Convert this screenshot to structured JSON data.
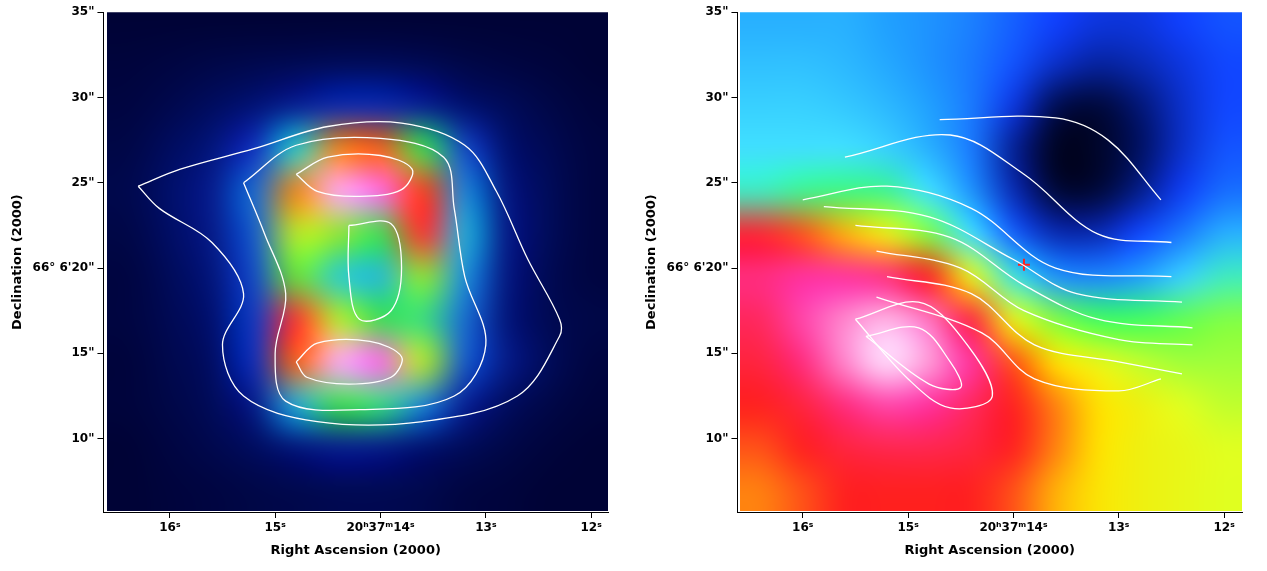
{
  "chart_data": [
    {
      "type": "heatmap",
      "x_label": "Right Ascension (2000)",
      "y_label": "Declination (2000)",
      "xlim": [
        16.63,
        11.84
      ],
      "ylim": [
        5.7,
        35
      ],
      "xticks": [
        {
          "value": 16,
          "label": "16ˢ"
        },
        {
          "value": 15,
          "label": "15ˢ"
        },
        {
          "value": 14,
          "label": "20ʰ37ᵐ14ˢ"
        },
        {
          "value": 13,
          "label": "13ˢ"
        },
        {
          "value": 12,
          "label": "12ˢ"
        }
      ],
      "yticks": [
        {
          "value": 10,
          "label": "10\""
        },
        {
          "value": 15,
          "label": "15\""
        },
        {
          "value": 20,
          "label": "66° 6'20\""
        },
        {
          "value": 25,
          "label": "25\""
        },
        {
          "value": 30,
          "label": "30\""
        },
        {
          "value": 35,
          "label": "35\""
        }
      ],
      "grid": false,
      "heatmap": {
        "x": [
          16.4,
          16.0,
          15.6,
          15.2,
          14.8,
          14.4,
          14.0,
          13.6,
          13.2,
          12.8,
          12.4,
          12.0
        ],
        "y": [
          34.5,
          32,
          29.5,
          27,
          24.5,
          22,
          19.5,
          17,
          14.5,
          12,
          9.5,
          7
        ],
        "cells": [
          [
            0.02,
            0.02,
            0.02,
            0.02,
            0.02,
            0.02,
            0.02,
            0.02,
            0.02,
            0.02,
            0.02,
            0.02
          ],
          [
            0.03,
            0.04,
            0.05,
            0.06,
            0.07,
            0.08,
            0.08,
            0.07,
            0.05,
            0.04,
            0.03,
            0.02
          ],
          [
            0.04,
            0.06,
            0.09,
            0.13,
            0.18,
            0.22,
            0.22,
            0.18,
            0.12,
            0.08,
            0.05,
            0.03
          ],
          [
            0.05,
            0.09,
            0.14,
            0.25,
            0.45,
            0.7,
            0.72,
            0.55,
            0.28,
            0.12,
            0.07,
            0.04
          ],
          [
            0.06,
            0.11,
            0.17,
            0.32,
            0.7,
            0.98,
            0.95,
            0.75,
            0.35,
            0.15,
            0.08,
            0.04
          ],
          [
            0.05,
            0.1,
            0.16,
            0.3,
            0.62,
            0.6,
            0.55,
            0.78,
            0.4,
            0.16,
            0.08,
            0.04
          ],
          [
            0.04,
            0.08,
            0.14,
            0.28,
            0.58,
            0.45,
            0.42,
            0.6,
            0.36,
            0.15,
            0.07,
            0.04
          ],
          [
            0.04,
            0.07,
            0.12,
            0.26,
            0.78,
            0.62,
            0.55,
            0.52,
            0.32,
            0.14,
            0.07,
            0.05
          ],
          [
            0.03,
            0.06,
            0.1,
            0.24,
            0.72,
            0.98,
            0.95,
            0.62,
            0.3,
            0.16,
            0.08,
            0.04
          ],
          [
            0.03,
            0.05,
            0.08,
            0.16,
            0.4,
            0.55,
            0.52,
            0.35,
            0.18,
            0.09,
            0.05,
            0.03
          ],
          [
            0.02,
            0.04,
            0.06,
            0.09,
            0.14,
            0.17,
            0.16,
            0.12,
            0.08,
            0.05,
            0.03,
            0.02
          ],
          [
            0.02,
            0.03,
            0.04,
            0.05,
            0.06,
            0.07,
            0.07,
            0.06,
            0.04,
            0.03,
            0.02,
            0.02
          ]
        ]
      },
      "series": [
        {
          "type": "line",
          "color": "#ffffff",
          "x": [
            16.3,
            15.9,
            15.2,
            14.5,
            13.8,
            13.2,
            12.9,
            12.6,
            12.3,
            12.3,
            12.7,
            13.6,
            14.6,
            15.3,
            15.5,
            15.3,
            15.6,
            16.1,
            16.3
          ],
          "y": [
            24.8,
            25.8,
            27.0,
            28.3,
            28.5,
            27.2,
            24.5,
            20.5,
            17.0,
            16.0,
            12.5,
            11.0,
            11.0,
            12.5,
            15.5,
            18.5,
            21.5,
            23.5,
            24.8
          ]
        },
        {
          "type": "line",
          "color": "#ffffff",
          "x": [
            15.3,
            14.8,
            14.0,
            13.4,
            13.3,
            13.2,
            13.0,
            13.3,
            14.2,
            14.9,
            15.0,
            14.9,
            15.1,
            15.3
          ],
          "y": [
            25.0,
            27.2,
            27.6,
            26.5,
            23.5,
            19.5,
            15.5,
            12.5,
            11.7,
            12.2,
            15.0,
            18.5,
            22.0,
            25.0
          ]
        },
        {
          "type": "line",
          "color": "#ffffff",
          "x": [
            14.8,
            14.5,
            14.0,
            13.7,
            13.8,
            14.2,
            14.6,
            14.8
          ],
          "y": [
            25.5,
            26.5,
            26.6,
            25.8,
            24.6,
            24.2,
            24.5,
            25.5
          ]
        },
        {
          "type": "line",
          "color": "#ffffff",
          "x": [
            14.8,
            14.6,
            14.1,
            13.8,
            13.9,
            14.3,
            14.7,
            14.8
          ],
          "y": [
            14.5,
            15.6,
            15.7,
            14.8,
            13.6,
            13.2,
            13.6,
            14.5
          ]
        },
        {
          "type": "line",
          "color": "#ffffff",
          "x": [
            14.3,
            13.9,
            13.8,
            13.9,
            14.2,
            14.3,
            14.3
          ],
          "y": [
            22.5,
            22.6,
            20.0,
            17.5,
            17.0,
            19.5,
            22.5
          ]
        }
      ]
    },
    {
      "type": "heatmap",
      "x_label": "Right Ascension (2000)",
      "y_label": "Declination (2000)",
      "xlim": [
        16.62,
        11.83
      ],
      "ylim": [
        5.7,
        35
      ],
      "xticks": [
        {
          "value": 16,
          "label": "16ˢ"
        },
        {
          "value": 15,
          "label": "15ˢ"
        },
        {
          "value": 14,
          "label": "20ʰ37ᵐ14ˢ"
        },
        {
          "value": 13,
          "label": "13ˢ"
        },
        {
          "value": 12,
          "label": "12ˢ"
        }
      ],
      "yticks": [
        {
          "value": 10,
          "label": "10\""
        },
        {
          "value": 15,
          "label": "15\""
        },
        {
          "value": 20,
          "label": "66° 6'20\""
        },
        {
          "value": 25,
          "label": "25\""
        },
        {
          "value": 30,
          "label": "30\""
        },
        {
          "value": 35,
          "label": "35\""
        }
      ],
      "grid": false,
      "heatmap": {
        "x": [
          16.4,
          16.0,
          15.6,
          15.2,
          14.8,
          14.4,
          14.0,
          13.6,
          13.2,
          12.8,
          12.4,
          12.0
        ],
        "y": [
          34.5,
          32,
          29.5,
          27,
          24.5,
          22,
          19.5,
          17,
          14.5,
          12,
          9.5,
          7
        ],
        "cells": [
          [
            0.42,
            0.42,
            0.42,
            0.4,
            0.38,
            0.35,
            0.3,
            0.25,
            0.22,
            0.22,
            0.25,
            0.28
          ],
          [
            0.44,
            0.44,
            0.43,
            0.41,
            0.38,
            0.34,
            0.28,
            0.2,
            0.16,
            0.18,
            0.22,
            0.26
          ],
          [
            0.46,
            0.46,
            0.45,
            0.43,
            0.4,
            0.34,
            0.22,
            0.08,
            0.05,
            0.12,
            0.2,
            0.26
          ],
          [
            0.48,
            0.48,
            0.48,
            0.46,
            0.42,
            0.34,
            0.15,
            0.02,
            0.03,
            0.1,
            0.2,
            0.28
          ],
          [
            0.52,
            0.55,
            0.56,
            0.55,
            0.48,
            0.38,
            0.18,
            0.05,
            0.05,
            0.14,
            0.24,
            0.32
          ],
          [
            0.85,
            0.82,
            0.78,
            0.72,
            0.62,
            0.48,
            0.3,
            0.18,
            0.18,
            0.26,
            0.34,
            0.42
          ],
          [
            0.9,
            0.92,
            0.92,
            0.9,
            0.84,
            0.7,
            0.5,
            0.38,
            0.36,
            0.4,
            0.46,
            0.52
          ],
          [
            0.88,
            0.93,
            0.96,
            0.98,
            0.95,
            0.86,
            0.7,
            0.62,
            0.58,
            0.58,
            0.6,
            0.62
          ],
          [
            0.86,
            0.9,
            0.96,
            1.0,
            0.97,
            0.92,
            0.82,
            0.76,
            0.7,
            0.66,
            0.64,
            0.64
          ],
          [
            0.84,
            0.86,
            0.9,
            0.93,
            0.92,
            0.88,
            0.84,
            0.8,
            0.76,
            0.72,
            0.68,
            0.66
          ],
          [
            0.82,
            0.84,
            0.86,
            0.87,
            0.87,
            0.86,
            0.84,
            0.8,
            0.76,
            0.72,
            0.7,
            0.68
          ],
          [
            0.8,
            0.82,
            0.84,
            0.84,
            0.84,
            0.84,
            0.82,
            0.78,
            0.75,
            0.72,
            0.7,
            0.68
          ]
        ]
      },
      "series": [
        {
          "type": "line",
          "color": "#ffffff",
          "x": [
            14.7,
            13.6,
            13.1,
            12.6
          ],
          "y": [
            28.7,
            28.8,
            27.5,
            24.0
          ]
        },
        {
          "type": "line",
          "color": "#ffffff",
          "x": [
            15.6,
            14.6,
            13.9,
            13.2,
            12.5
          ],
          "y": [
            26.5,
            27.8,
            25.5,
            22.0,
            21.5
          ]
        },
        {
          "type": "line",
          "color": "#ffffff",
          "x": [
            16.0,
            15.2,
            14.4,
            13.6,
            12.5
          ],
          "y": [
            24.0,
            24.8,
            23.5,
            20.0,
            19.5
          ]
        },
        {
          "type": "line",
          "color": "#ffffff",
          "x": [
            15.8,
            14.8,
            14.0,
            13.4,
            12.4
          ],
          "y": [
            23.6,
            23.0,
            20.5,
            18.5,
            18.0
          ]
        },
        {
          "type": "line",
          "color": "#ffffff",
          "x": [
            15.5,
            14.6,
            13.9,
            13.2,
            12.3
          ],
          "y": [
            22.5,
            21.8,
            19.0,
            17.0,
            16.5
          ]
        },
        {
          "type": "line",
          "color": "#ffffff",
          "x": [
            15.3,
            14.5,
            13.9,
            13.0,
            12.3
          ],
          "y": [
            21.0,
            20.0,
            17.5,
            15.8,
            15.5
          ]
        },
        {
          "type": "line",
          "color": "#ffffff",
          "x": [
            15.2,
            14.4,
            13.8,
            13.0,
            12.4
          ],
          "y": [
            19.5,
            18.5,
            15.5,
            14.5,
            13.8
          ]
        },
        {
          "type": "line",
          "color": "#ffffff",
          "x": [
            15.3,
            14.3,
            13.8,
            13.0,
            12.6
          ],
          "y": [
            18.3,
            16.2,
            13.5,
            12.8,
            13.5
          ]
        },
        {
          "type": "line",
          "color": "#ffffff",
          "x": [
            15.5,
            14.9,
            14.5,
            14.2,
            14.6,
            15.0,
            15.5
          ],
          "y": [
            17.0,
            18.0,
            16.0,
            12.5,
            11.8,
            13.5,
            17.0
          ]
        },
        {
          "type": "line",
          "color": "#ffffff",
          "x": [
            15.4,
            14.9,
            14.6,
            14.5,
            14.8,
            15.4
          ],
          "y": [
            16.0,
            16.5,
            14.5,
            13.0,
            13.2,
            16.0
          ]
        },
        {
          "type": "scatter",
          "marker": "cross",
          "color": "#ff2020",
          "x": [
            13.9
          ],
          "y": [
            20.2
          ]
        }
      ]
    }
  ]
}
